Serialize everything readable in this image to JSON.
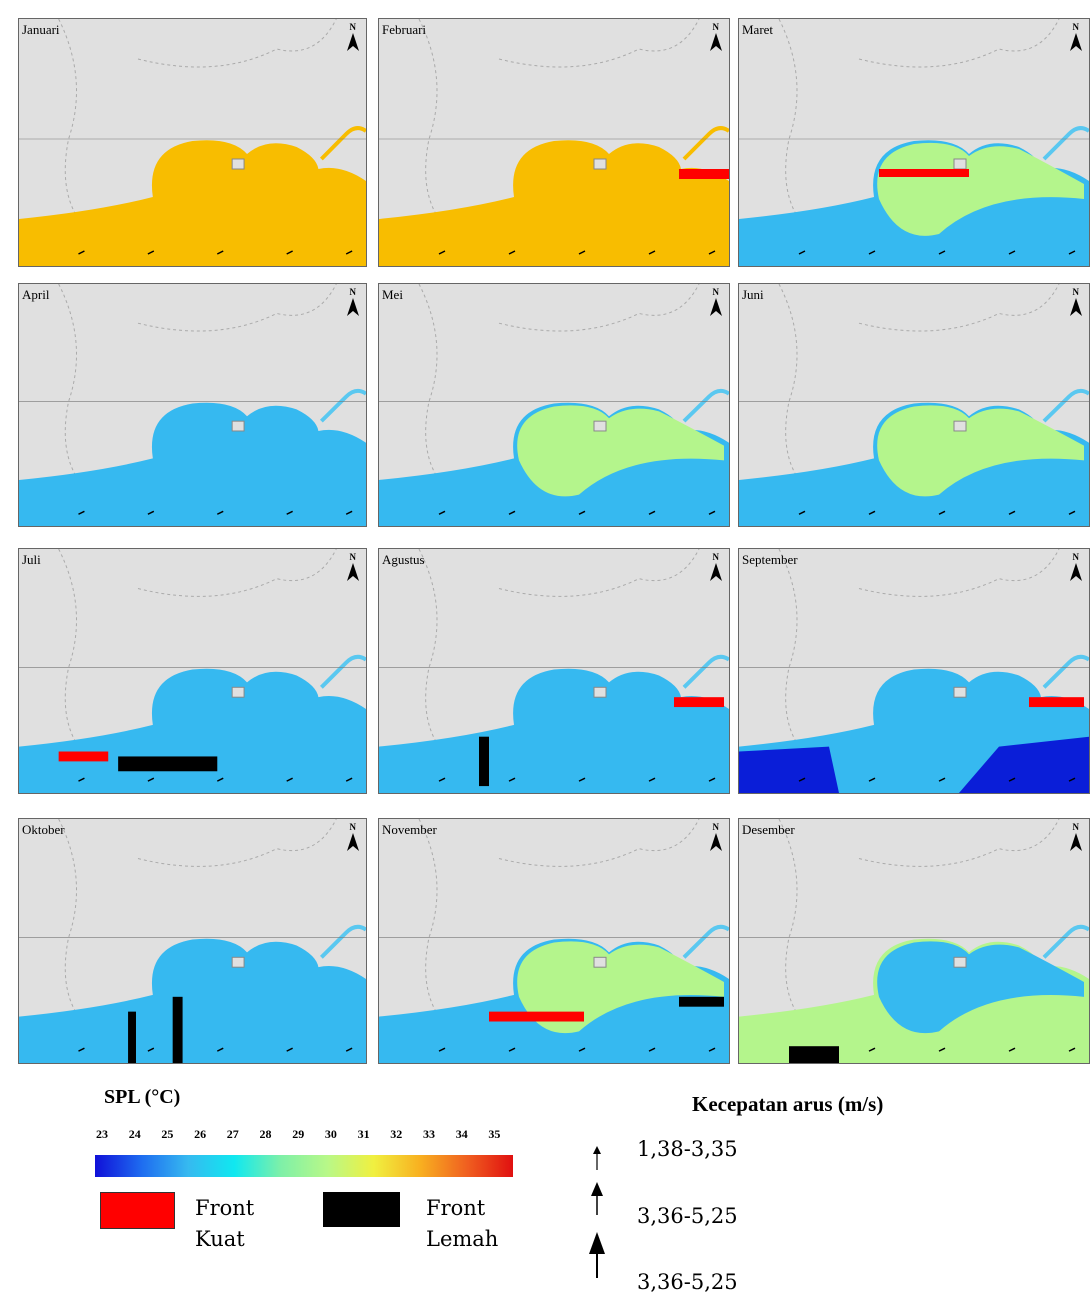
{
  "panels": [
    {
      "label": "Januari"
    },
    {
      "label": "Februari"
    },
    {
      "label": "Maret"
    },
    {
      "label": "April"
    },
    {
      "label": "Mei"
    },
    {
      "label": "Juni"
    },
    {
      "label": "Juli"
    },
    {
      "label": "Agustus"
    },
    {
      "label": "September"
    },
    {
      "label": "Oktober"
    },
    {
      "label": "November"
    },
    {
      "label": "Desember"
    }
  ],
  "north": "N",
  "legend": {
    "spl_title": "SPL (°C)",
    "scale": [
      23,
      24,
      25,
      26,
      27,
      28,
      29,
      30,
      31,
      32,
      33,
      34,
      35
    ],
    "fronts": [
      "Front Kuat",
      "Front Lemah"
    ],
    "current_title": "Kecepatan arus (m/s)",
    "current": [
      "1,38-3,35",
      "3,36-5,25",
      "3,36-5,25"
    ]
  }
}
